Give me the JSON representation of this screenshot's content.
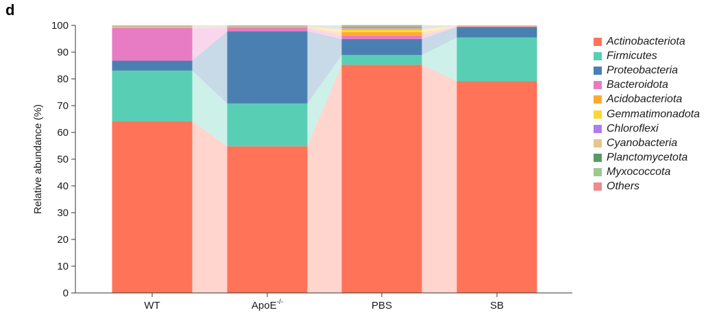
{
  "panel_label": "d",
  "chart_data": {
    "type": "bar",
    "stacked": true,
    "ylabel": "Relative abundance (%)",
    "ylim": [
      0,
      100
    ],
    "yticks": [
      0,
      10,
      20,
      30,
      40,
      50,
      60,
      70,
      80,
      90,
      100
    ],
    "categories": [
      "WT",
      "ApoE",
      "PBS",
      "SB"
    ],
    "category_superscripts": [
      "",
      "-/-",
      "",
      ""
    ],
    "grid": false,
    "legend_position": "right",
    "series": [
      {
        "name": "Actinobacteriota",
        "color": "#FF7359",
        "values": [
          64.2,
          54.8,
          85.3,
          79.1
        ]
      },
      {
        "name": "Firmicutes",
        "color": "#58CFB4",
        "values": [
          18.9,
          16.0,
          3.6,
          16.4
        ]
      },
      {
        "name": "Proteobacteria",
        "color": "#4A80B1",
        "values": [
          3.7,
          27.0,
          6.0,
          3.9
        ]
      },
      {
        "name": "Bacteroidota",
        "color": "#E87CC4",
        "values": [
          12.2,
          1.3,
          1.3,
          0.2
        ]
      },
      {
        "name": "Acidobacteriota",
        "color": "#FFAA33",
        "values": [
          0.3,
          0.2,
          1.3,
          0.1
        ]
      },
      {
        "name": "Gemmatimonadota",
        "color": "#FFD633",
        "values": [
          0.2,
          0.1,
          1.0,
          0.05
        ]
      },
      {
        "name": "Chloroflexi",
        "color": "#B07CEB",
        "values": [
          0.1,
          0.1,
          0.3,
          0.05
        ]
      },
      {
        "name": "Cyanobacteria",
        "color": "#E8C48C",
        "values": [
          0.1,
          0.1,
          0.3,
          0.05
        ]
      },
      {
        "name": "Planctomycetota",
        "color": "#5A9A63",
        "values": [
          0.1,
          0.1,
          0.3,
          0.05
        ]
      },
      {
        "name": "Myxococcota",
        "color": "#9CC98F",
        "values": [
          0.1,
          0.1,
          0.3,
          0.05
        ]
      },
      {
        "name": "Others",
        "color": "#EB8C8E",
        "values": [
          0.1,
          0.2,
          0.4,
          0.05
        ]
      }
    ]
  }
}
